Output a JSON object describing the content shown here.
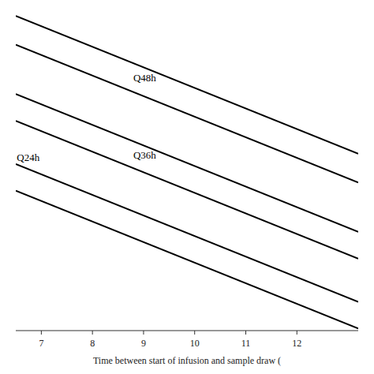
{
  "chart_data": {
    "type": "line",
    "x": [
      6.5,
      13.2
    ],
    "series": [
      {
        "color": "#000000",
        "values": [
          0.98,
          0.31
        ]
      },
      {
        "color": "#000000",
        "values": [
          0.84,
          0.17
        ]
      },
      {
        "color": "#000000",
        "values": [
          0.6,
          -0.07
        ]
      },
      {
        "color": "#000000",
        "values": [
          0.47,
          -0.2
        ]
      },
      {
        "color": "#000000",
        "values": [
          0.26,
          -0.41
        ]
      },
      {
        "color": "#000000",
        "values": [
          0.13,
          -0.54
        ]
      }
    ],
    "annotations": [
      {
        "text": "Q48h",
        "x": 8.8,
        "y": 0.68,
        "color": "#000000"
      },
      {
        "text": "Q36h",
        "x": 8.8,
        "y": 0.305,
        "color": "#000000"
      },
      {
        "text": "Q24h",
        "x": 6.52,
        "y": 0.293,
        "color": "#000000"
      }
    ],
    "xlabel": "Time between start of infusion and sample draw (",
    "xlim": [
      6.5,
      13.2
    ],
    "ylim": [
      -0.55,
      1.0
    ],
    "xticks": [
      7,
      8,
      9,
      10,
      11,
      12
    ],
    "tick_labels": "x",
    "grid": false
  }
}
